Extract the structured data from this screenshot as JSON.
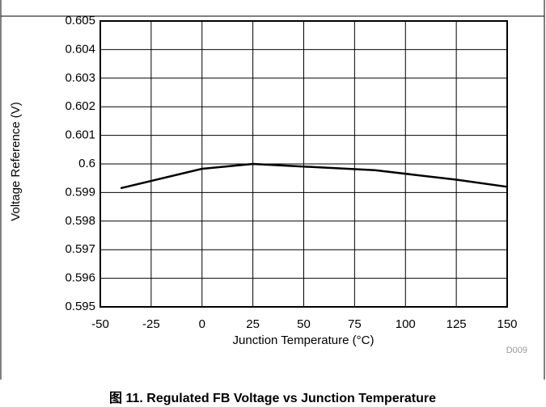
{
  "chart_data": {
    "type": "line",
    "caption": "图 11. Regulated FB Voltage vs Junction Temperature",
    "xlabel": "Junction Temperature (°C)",
    "ylabel": "Voltage Reference (V)",
    "figure_id": "D009",
    "x": [
      -40,
      0,
      25,
      85,
      125,
      150
    ],
    "values": [
      0.59915,
      0.59983,
      0.6,
      0.59978,
      0.59945,
      0.5992
    ],
    "color": "#000000",
    "xlim": [
      -50,
      150
    ],
    "xticks": [
      -50,
      -25,
      0,
      25,
      50,
      75,
      100,
      125,
      150
    ],
    "ylim": [
      0.595,
      0.605
    ],
    "yticks": [
      0.595,
      0.596,
      0.597,
      0.598,
      0.599,
      0.6,
      0.601,
      0.602,
      0.603,
      0.604,
      0.605
    ],
    "grid": true
  }
}
